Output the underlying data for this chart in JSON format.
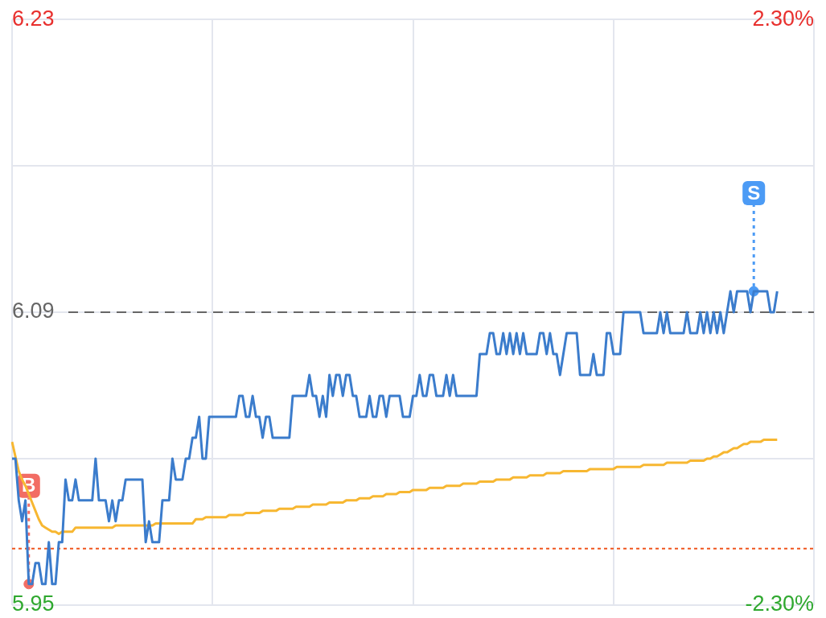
{
  "chart_data": {
    "type": "line",
    "legend": false,
    "grid": true,
    "marker": "none",
    "line_style": "solid",
    "tick_labels": "y",
    "categories": [
      null,
      null,
      null,
      null,
      null,
      null,
      null,
      null,
      null,
      null,
      null,
      null,
      null,
      null,
      null,
      null,
      null,
      null,
      null,
      null,
      null,
      null,
      null,
      null,
      null,
      null,
      null,
      null,
      null,
      null,
      null,
      null,
      null,
      null,
      null,
      null,
      null,
      null,
      null,
      null,
      null,
      null,
      null,
      null,
      null,
      null,
      null,
      null,
      null,
      null,
      null,
      null,
      null,
      null,
      null,
      null,
      null,
      null,
      null,
      null,
      null,
      null,
      null,
      null,
      null,
      null,
      null,
      null,
      null,
      null,
      null,
      null,
      null,
      null,
      null,
      null,
      null,
      null,
      null,
      null,
      null,
      null,
      null,
      null,
      null,
      null,
      null,
      null,
      null,
      null,
      null,
      null,
      null,
      null,
      null,
      null,
      null,
      null,
      null,
      null,
      null,
      null,
      null,
      null,
      null,
      null,
      null,
      null,
      null,
      null,
      null,
      null,
      null,
      null,
      null,
      null,
      null,
      null,
      null,
      null,
      null,
      null,
      null,
      null,
      null,
      null,
      null,
      null,
      null,
      null,
      null,
      null,
      null,
      null,
      null,
      null,
      null,
      null,
      null,
      null,
      null,
      null,
      null,
      null,
      null,
      null,
      null,
      null,
      null,
      null,
      null,
      null,
      null,
      null,
      null,
      null,
      null,
      null,
      null,
      null,
      null,
      null,
      null,
      null,
      null,
      null,
      null,
      null,
      null,
      null,
      null,
      null,
      null,
      null,
      null,
      null,
      null,
      null,
      null,
      null,
      null,
      null,
      null,
      null,
      null,
      null,
      null,
      null,
      null,
      null,
      null,
      null,
      null,
      null,
      null,
      null,
      null,
      null,
      null,
      null,
      null,
      null,
      null,
      null,
      null,
      null,
      null,
      null,
      null,
      null,
      null,
      null,
      null,
      null,
      null,
      null,
      null,
      null,
      null,
      null,
      null,
      null,
      null,
      null,
      null,
      null,
      null,
      null,
      null,
      null,
      null,
      null,
      null,
      null,
      null,
      null,
      null,
      null,
      null,
      null,
      null
    ],
    "ylim": [
      5.95,
      6.23
    ],
    "yticks": [
      5.95,
      {
        "value": 6.02,
        "label": null
      },
      6.09,
      {
        "value": 6.16,
        "label": null
      },
      6.23
    ],
    "y2lim": [
      -2.3,
      2.3
    ],
    "y2ticks": [
      {
        "value": -2.3,
        "label": "-2.30%"
      },
      {
        "value": 2.3,
        "label": "2.30%"
      }
    ],
    "ref_lines": [
      {
        "axis": "y",
        "value": 6.09,
        "color": "#666666",
        "line_style": "dashed"
      },
      {
        "axis": "y",
        "value": 5.977,
        "color": "#f0561e",
        "line_style": "dotted"
      }
    ],
    "series": [
      {
        "color": "#3b7ccc",
        "values": [
          6.02,
          6.02,
          6.0,
          5.99,
          6.0,
          5.96,
          5.96,
          5.97,
          5.97,
          5.96,
          5.96,
          5.98,
          5.96,
          5.96,
          5.98,
          5.98,
          6.01,
          6.0,
          6.0,
          6.01,
          6.0,
          6.0,
          6.0,
          6.0,
          6.0,
          6.02,
          6.0,
          6.0,
          6.0,
          5.99,
          6.0,
          5.99,
          6.0,
          6.0,
          6.01,
          6.01,
          6.01,
          6.01,
          6.01,
          6.01,
          5.98,
          5.99,
          5.98,
          5.98,
          5.98,
          6.0,
          6.0,
          6.0,
          6.02,
          6.01,
          6.01,
          6.01,
          6.02,
          6.02,
          6.03,
          6.03,
          6.04,
          6.02,
          6.02,
          6.04,
          6.04,
          6.04,
          6.04,
          6.04,
          6.04,
          6.04,
          6.04,
          6.04,
          6.05,
          6.05,
          6.04,
          6.04,
          6.05,
          6.04,
          6.04,
          6.03,
          6.04,
          6.04,
          6.03,
          6.03,
          6.03,
          6.03,
          6.03,
          6.03,
          6.05,
          6.05,
          6.05,
          6.05,
          6.05,
          6.06,
          6.05,
          6.05,
          6.04,
          6.05,
          6.04,
          6.06,
          6.05,
          6.06,
          6.06,
          6.05,
          6.06,
          6.06,
          6.05,
          6.05,
          6.04,
          6.04,
          6.04,
          6.05,
          6.04,
          6.04,
          6.05,
          6.05,
          6.04,
          6.05,
          6.05,
          6.05,
          6.05,
          6.04,
          6.04,
          6.04,
          6.05,
          6.05,
          6.06,
          6.05,
          6.05,
          6.06,
          6.06,
          6.05,
          6.05,
          6.05,
          6.06,
          6.05,
          6.06,
          6.05,
          6.05,
          6.05,
          6.05,
          6.05,
          6.05,
          6.05,
          6.07,
          6.07,
          6.07,
          6.08,
          6.08,
          6.07,
          6.07,
          6.08,
          6.07,
          6.08,
          6.07,
          6.08,
          6.07,
          6.08,
          6.07,
          6.07,
          6.07,
          6.07,
          6.08,
          6.08,
          6.07,
          6.08,
          6.07,
          6.07,
          6.06,
          6.07,
          6.08,
          6.08,
          6.08,
          6.08,
          6.06,
          6.06,
          6.06,
          6.06,
          6.07,
          6.06,
          6.06,
          6.06,
          6.08,
          6.08,
          6.07,
          6.07,
          6.07,
          6.09,
          6.09,
          6.09,
          6.09,
          6.09,
          6.09,
          6.08,
          6.08,
          6.08,
          6.08,
          6.08,
          6.09,
          6.08,
          6.09,
          6.08,
          6.08,
          6.08,
          6.08,
          6.08,
          6.09,
          6.08,
          6.08,
          6.08,
          6.09,
          6.08,
          6.09,
          6.08,
          6.09,
          6.08,
          6.09,
          6.08,
          6.09,
          6.1,
          6.09,
          6.1,
          6.1,
          6.1,
          6.1,
          6.09,
          6.1,
          6.1,
          6.1,
          6.1,
          6.1,
          6.09,
          6.09,
          6.1,
          null,
          null,
          null,
          null,
          null,
          null,
          null,
          null,
          null,
          null,
          null
        ]
      },
      {
        "color": "#f7b731",
        "values": [
          6.028,
          6.021,
          6.014,
          6.01,
          6.007,
          6.003,
          5.999,
          5.995,
          5.991,
          5.988,
          5.987,
          5.986,
          5.985,
          5.985,
          5.984,
          5.985,
          5.985,
          5.985,
          5.985,
          5.987,
          5.987,
          5.987,
          5.987,
          5.987,
          5.987,
          5.987,
          5.987,
          5.987,
          5.987,
          5.987,
          5.987,
          5.988,
          5.988,
          5.988,
          5.988,
          5.988,
          5.988,
          5.988,
          5.988,
          5.988,
          5.988,
          5.988,
          5.988,
          5.989,
          5.989,
          5.989,
          5.989,
          5.989,
          5.989,
          5.989,
          5.989,
          5.989,
          5.989,
          5.989,
          5.989,
          5.991,
          5.991,
          5.991,
          5.992,
          5.992,
          5.992,
          5.992,
          5.992,
          5.992,
          5.992,
          5.993,
          5.993,
          5.993,
          5.993,
          5.993,
          5.994,
          5.994,
          5.994,
          5.994,
          5.994,
          5.995,
          5.995,
          5.995,
          5.995,
          5.995,
          5.996,
          5.996,
          5.996,
          5.996,
          5.996,
          5.997,
          5.997,
          5.997,
          5.997,
          5.997,
          5.998,
          5.998,
          5.998,
          5.998,
          5.998,
          5.999,
          5.999,
          5.999,
          5.999,
          5.999,
          6.0,
          6.0,
          6.0,
          6.0,
          6.001,
          6.001,
          6.001,
          6.001,
          6.002,
          6.002,
          6.002,
          6.002,
          6.003,
          6.003,
          6.003,
          6.003,
          6.004,
          6.004,
          6.004,
          6.004,
          6.005,
          6.005,
          6.005,
          6.005,
          6.005,
          6.006,
          6.006,
          6.006,
          6.006,
          6.006,
          6.007,
          6.007,
          6.007,
          6.007,
          6.007,
          6.008,
          6.008,
          6.008,
          6.008,
          6.008,
          6.009,
          6.009,
          6.009,
          6.009,
          6.009,
          6.01,
          6.01,
          6.01,
          6.01,
          6.01,
          6.011,
          6.011,
          6.011,
          6.011,
          6.011,
          6.012,
          6.012,
          6.012,
          6.012,
          6.012,
          6.013,
          6.013,
          6.013,
          6.013,
          6.013,
          6.014,
          6.014,
          6.014,
          6.014,
          6.014,
          6.014,
          6.014,
          6.014,
          6.015,
          6.015,
          6.015,
          6.015,
          6.015,
          6.015,
          6.015,
          6.015,
          6.016,
          6.016,
          6.016,
          6.016,
          6.016,
          6.016,
          6.016,
          6.016,
          6.017,
          6.017,
          6.017,
          6.017,
          6.017,
          6.017,
          6.017,
          6.018,
          6.018,
          6.018,
          6.018,
          6.018,
          6.018,
          6.018,
          6.019,
          6.019,
          6.019,
          6.019,
          6.019,
          6.02,
          6.02,
          6.021,
          6.021,
          6.022,
          6.023,
          6.023,
          6.024,
          6.025,
          6.025,
          6.026,
          6.027,
          6.027,
          6.028,
          6.028,
          6.028,
          6.028,
          6.029,
          6.029,
          6.029,
          6.029,
          6.029,
          null,
          null,
          null,
          null,
          null,
          null,
          null,
          null,
          null,
          null,
          null
        ]
      },
      {
        "type": "scatter",
        "name": "B",
        "color": "#f26d64",
        "marker": "circle",
        "values": [
          null,
          null,
          null,
          null,
          null,
          5.96,
          null,
          null,
          null,
          null,
          null,
          null,
          null,
          null,
          null,
          null,
          null,
          null,
          null,
          null,
          null,
          null,
          null,
          null,
          null,
          null,
          null,
          null,
          null,
          null,
          null,
          null,
          null,
          null,
          null,
          null,
          null,
          null,
          null,
          null,
          null,
          null,
          null,
          null,
          null,
          null,
          null,
          null,
          null,
          null,
          null,
          null,
          null,
          null,
          null,
          null,
          null,
          null,
          null,
          null,
          null,
          null,
          null,
          null,
          null,
          null,
          null,
          null,
          null,
          null,
          null,
          null,
          null,
          null,
          null,
          null,
          null,
          null,
          null,
          null,
          null,
          null,
          null,
          null,
          null,
          null,
          null,
          null,
          null,
          null,
          null,
          null,
          null,
          null,
          null,
          null,
          null,
          null,
          null,
          null,
          null,
          null,
          null,
          null,
          null,
          null,
          null,
          null,
          null,
          null,
          null,
          null,
          null,
          null,
          null,
          null,
          null,
          null,
          null,
          null,
          null,
          null,
          null,
          null,
          null,
          null,
          null,
          null,
          null,
          null,
          null,
          null,
          null,
          null,
          null,
          null,
          null,
          null,
          null,
          null,
          null,
          null,
          null,
          null,
          null,
          null,
          null,
          null,
          null,
          null,
          null,
          null,
          null,
          null,
          null,
          null,
          null,
          null,
          null,
          null,
          null,
          null,
          null,
          null,
          null,
          null,
          null,
          null,
          null,
          null,
          null,
          null,
          null,
          null,
          null,
          null,
          null,
          null,
          null,
          null,
          null,
          null,
          null,
          null,
          null,
          null,
          null,
          null,
          null,
          null,
          null,
          null,
          null,
          null,
          null,
          null,
          null,
          null,
          null,
          null,
          null,
          null,
          null,
          null,
          null,
          null,
          null,
          null,
          null,
          null,
          null,
          null,
          null,
          null,
          null,
          null,
          null,
          null,
          null,
          null,
          null,
          null,
          null,
          null,
          null,
          null,
          null,
          null,
          null,
          null,
          null,
          null,
          null,
          null,
          null,
          null,
          null,
          null,
          null,
          null,
          null
        ]
      },
      {
        "type": "scatter",
        "name": "S",
        "color": "#4c9bf5",
        "marker": "circle",
        "values": [
          null,
          null,
          null,
          null,
          null,
          null,
          null,
          null,
          null,
          null,
          null,
          null,
          null,
          null,
          null,
          null,
          null,
          null,
          null,
          null,
          null,
          null,
          null,
          null,
          null,
          null,
          null,
          null,
          null,
          null,
          null,
          null,
          null,
          null,
          null,
          null,
          null,
          null,
          null,
          null,
          null,
          null,
          null,
          null,
          null,
          null,
          null,
          null,
          null,
          null,
          null,
          null,
          null,
          null,
          null,
          null,
          null,
          null,
          null,
          null,
          null,
          null,
          null,
          null,
          null,
          null,
          null,
          null,
          null,
          null,
          null,
          null,
          null,
          null,
          null,
          null,
          null,
          null,
          null,
          null,
          null,
          null,
          null,
          null,
          null,
          null,
          null,
          null,
          null,
          null,
          null,
          null,
          null,
          null,
          null,
          null,
          null,
          null,
          null,
          null,
          null,
          null,
          null,
          null,
          null,
          null,
          null,
          null,
          null,
          null,
          null,
          null,
          null,
          null,
          null,
          null,
          null,
          null,
          null,
          null,
          null,
          null,
          null,
          null,
          null,
          null,
          null,
          null,
          null,
          null,
          null,
          null,
          null,
          null,
          null,
          null,
          null,
          null,
          null,
          null,
          null,
          null,
          null,
          null,
          null,
          null,
          null,
          null,
          null,
          null,
          null,
          null,
          null,
          null,
          null,
          null,
          null,
          null,
          null,
          null,
          null,
          null,
          null,
          null,
          null,
          null,
          null,
          null,
          null,
          null,
          null,
          null,
          null,
          null,
          null,
          null,
          null,
          null,
          null,
          null,
          null,
          null,
          null,
          null,
          null,
          null,
          null,
          null,
          null,
          null,
          null,
          null,
          null,
          null,
          null,
          null,
          null,
          null,
          null,
          null,
          null,
          null,
          null,
          null,
          null,
          null,
          null,
          null,
          null,
          null,
          null,
          null,
          null,
          null,
          null,
          null,
          null,
          null,
          null,
          null,
          null,
          null,
          6.1,
          null,
          null,
          null,
          null,
          null,
          null,
          null,
          null,
          null,
          null,
          null,
          null,
          null,
          null,
          null,
          null,
          null,
          null
        ]
      }
    ]
  }
}
